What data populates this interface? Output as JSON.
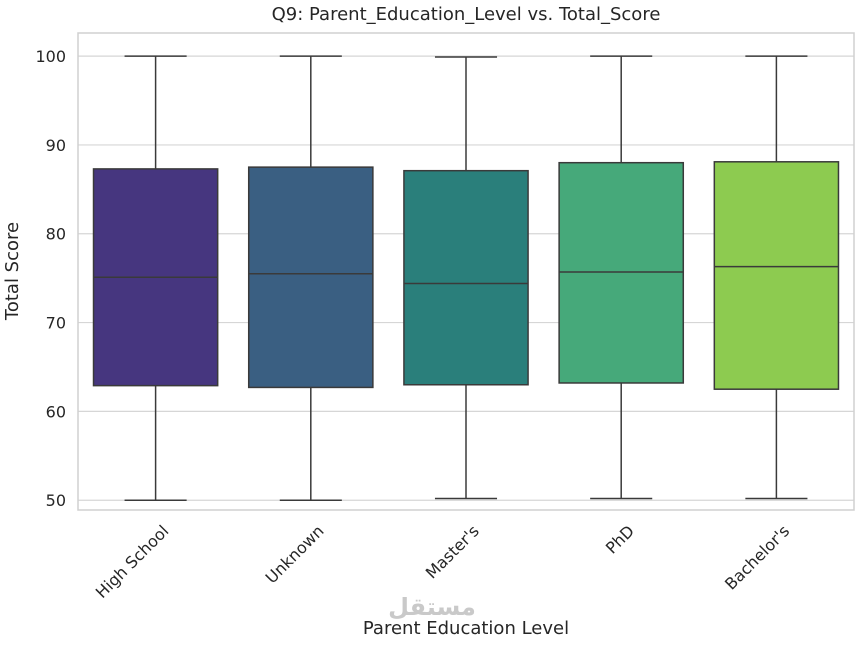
{
  "chart_data": {
    "type": "box",
    "title": "Q9: Parent_Education_Level vs. Total_Score",
    "xlabel": "Parent Education Level",
    "ylabel": "Total Score",
    "ylim": [
      48.9,
      102.6
    ],
    "yticks": [
      50,
      60,
      70,
      80,
      90,
      100
    ],
    "grid": true,
    "categories": [
      "High School",
      "Unknown",
      "Master's",
      "PhD",
      "Bachelor's"
    ],
    "boxes": [
      {
        "category": "High School",
        "min": 50.0,
        "q1": 62.9,
        "median": 75.1,
        "q3": 87.3,
        "max": 100.0,
        "color": "#46367f"
      },
      {
        "category": "Unknown",
        "min": 50.0,
        "q1": 62.7,
        "median": 75.5,
        "q3": 87.5,
        "max": 100.0,
        "color": "#3a5f82"
      },
      {
        "category": "Master's",
        "min": 50.2,
        "q1": 63.0,
        "median": 74.4,
        "q3": 87.1,
        "max": 99.9,
        "color": "#2a7f7b"
      },
      {
        "category": "PhD",
        "min": 50.2,
        "q1": 63.2,
        "median": 75.7,
        "q3": 88.0,
        "max": 100.0,
        "color": "#46a97a"
      },
      {
        "category": "Bachelor's",
        "min": 50.2,
        "q1": 62.5,
        "median": 76.3,
        "q3": 88.1,
        "max": 100.0,
        "color": "#8dcb50"
      }
    ]
  },
  "watermark": "مستقل"
}
